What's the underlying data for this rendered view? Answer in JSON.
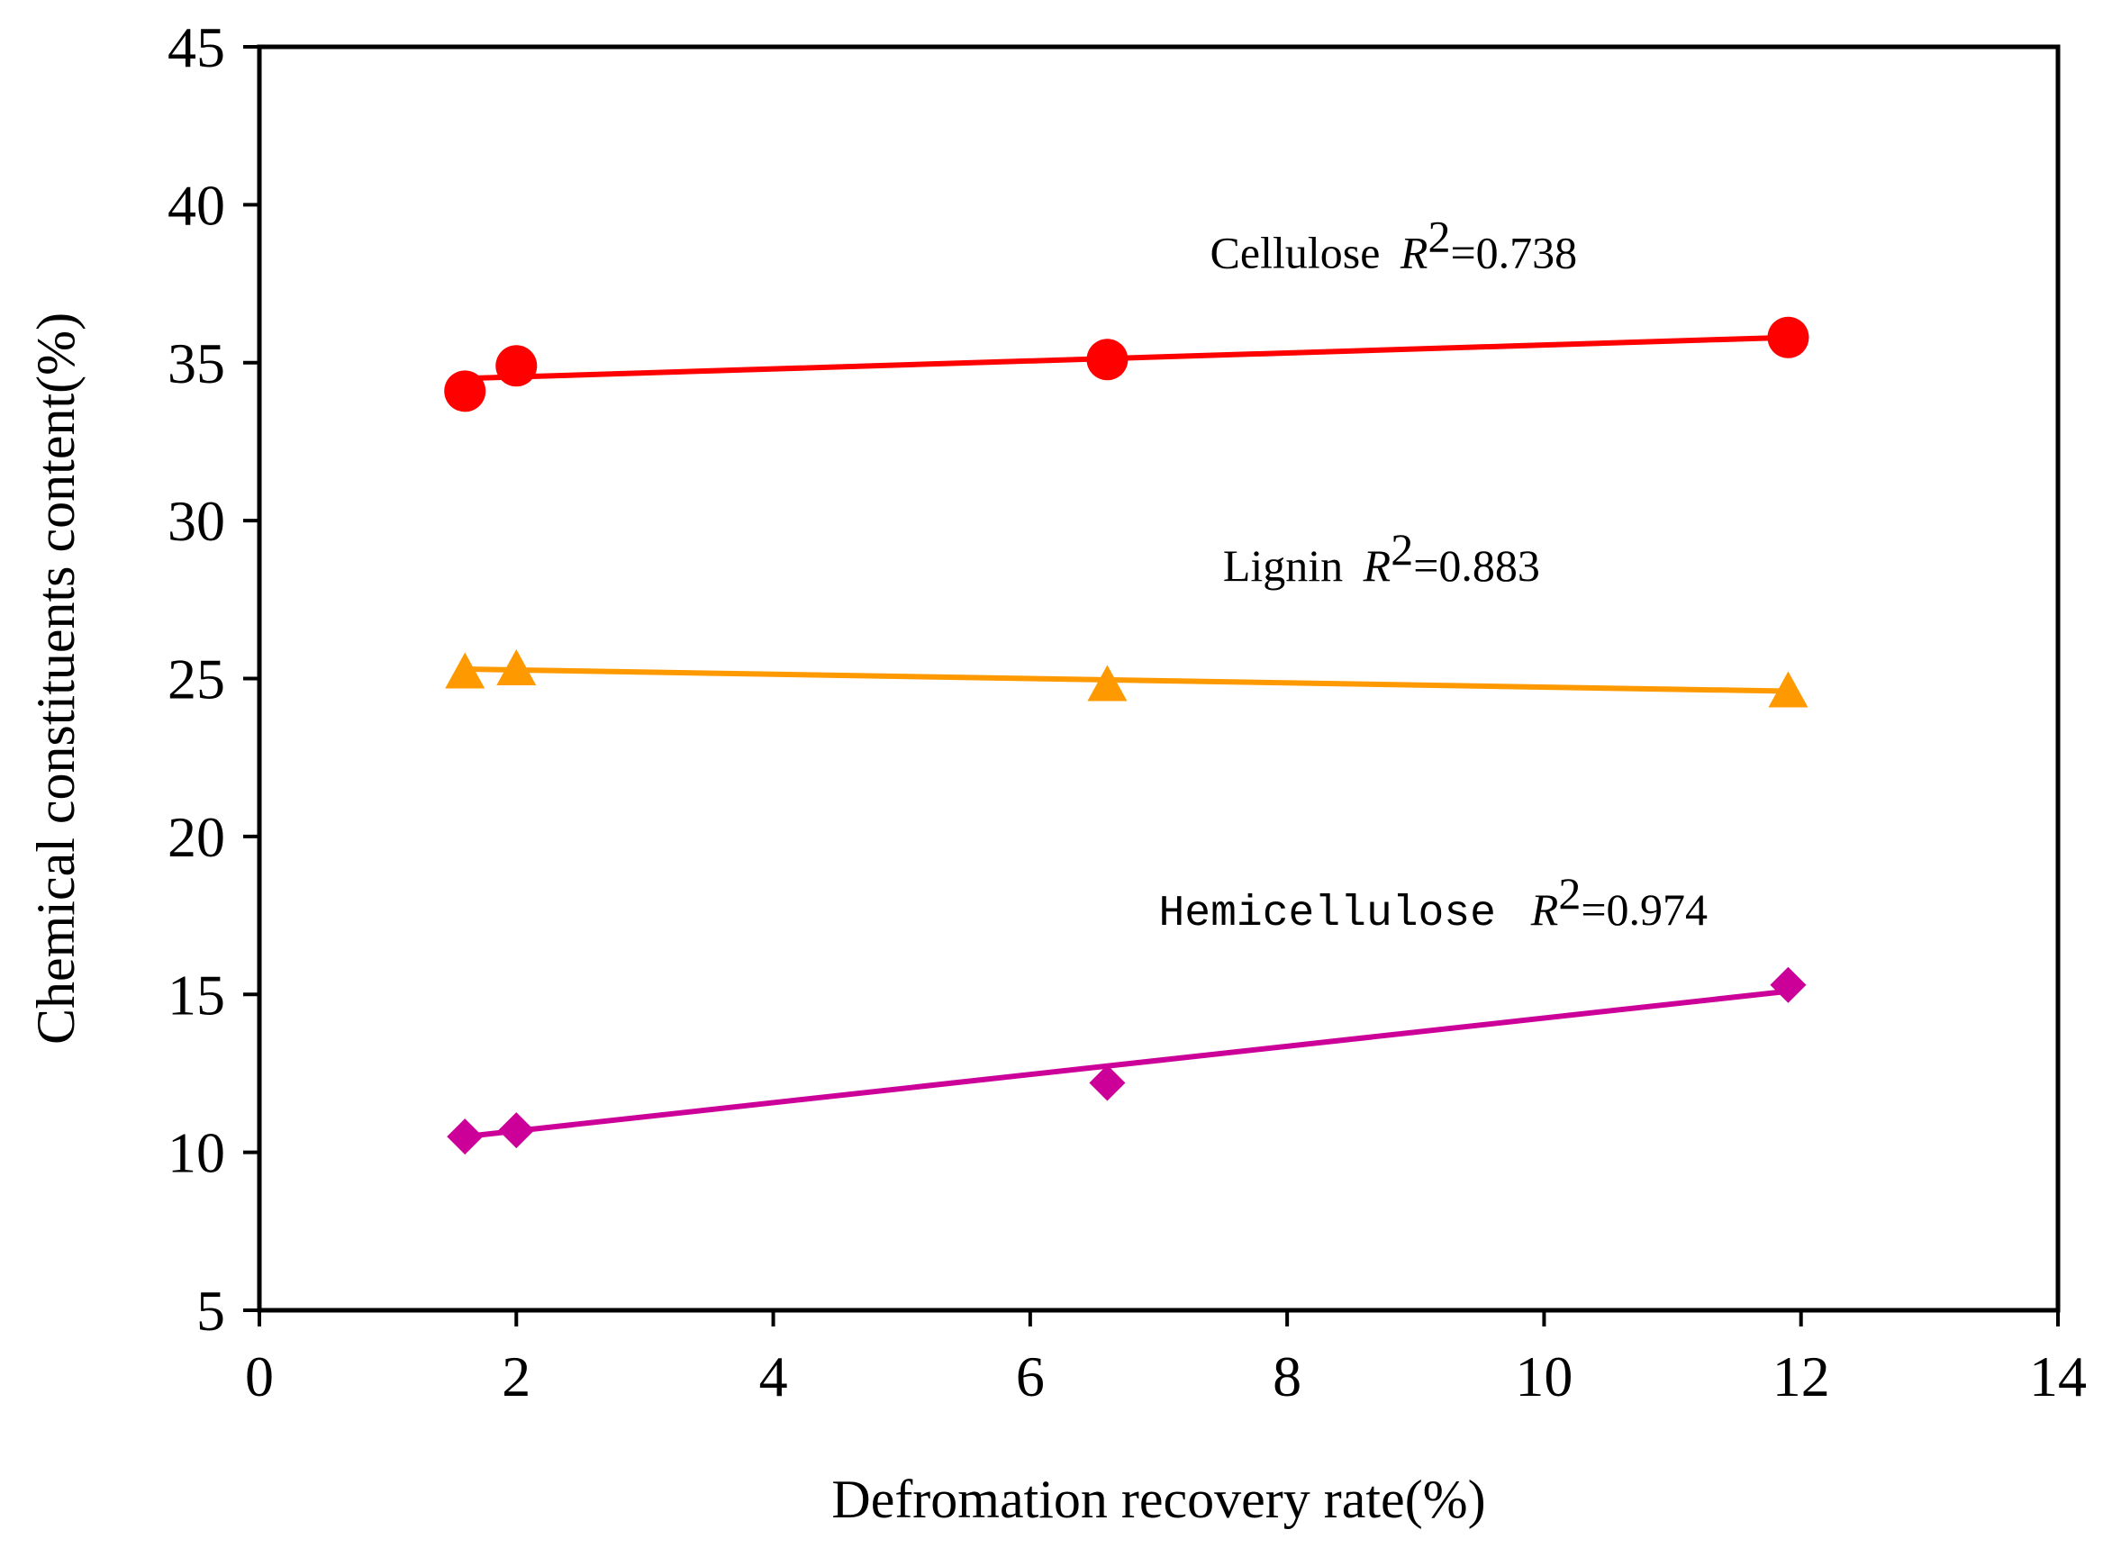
{
  "chart_data": {
    "type": "scatter",
    "title": "",
    "xlabel": "Defromation recovery rate(%)",
    "ylabel": "Chemical constituents content(%)",
    "xlim": [
      0,
      14
    ],
    "ylim": [
      5,
      45
    ],
    "xticks": [
      0,
      2,
      4,
      6,
      8,
      10,
      12,
      14
    ],
    "yticks": [
      5,
      10,
      15,
      20,
      25,
      30,
      35,
      40,
      45
    ],
    "xtick_labels": [
      "0",
      "2",
      "4",
      "6",
      "8",
      "10",
      "12",
      "14"
    ],
    "ytick_labels": [
      "5",
      "10",
      "15",
      "20",
      "25",
      "30",
      "35",
      "40",
      "45"
    ],
    "grid": false,
    "series": [
      {
        "name": "Cellulose",
        "marker": "circle",
        "color": "#ff0000",
        "x": [
          1.6,
          2.0,
          6.6,
          11.9
        ],
        "y": [
          34.1,
          34.9,
          35.1,
          35.8
        ],
        "trend": {
          "x": [
            1.6,
            11.9
          ],
          "y": [
            34.5,
            35.8
          ]
        },
        "annotation": {
          "label": "Cellulose",
          "r2_prefix": "R",
          "r2_sup": "2",
          "r2_value": "=0.738",
          "x": 7.4,
          "y": 38.0
        }
      },
      {
        "name": "Lignin",
        "marker": "triangle",
        "color": "#ff9900",
        "x": [
          1.6,
          2.0,
          6.6,
          11.9
        ],
        "y": [
          25.2,
          25.3,
          24.8,
          24.6
        ],
        "trend": {
          "x": [
            1.6,
            11.9
          ],
          "y": [
            25.3,
            24.6
          ]
        },
        "annotation": {
          "label": "Lignin",
          "r2_prefix": "R",
          "r2_sup": "2",
          "r2_value": "=0.883",
          "x": 7.5,
          "y": 28.1
        }
      },
      {
        "name": "Hemicellulose",
        "marker": "diamond",
        "color": "#cc0099",
        "x": [
          1.6,
          2.0,
          6.6,
          11.9
        ],
        "y": [
          10.5,
          10.7,
          12.2,
          15.3
        ],
        "trend": {
          "x": [
            1.6,
            11.9
          ],
          "y": [
            10.5,
            15.1
          ]
        },
        "annotation": {
          "label": "Hemicellulose",
          "r2_prefix": "R",
          "r2_sup": "2",
          "r2_value": "=0.974",
          "x": 7.0,
          "y": 17.2
        }
      }
    ]
  }
}
